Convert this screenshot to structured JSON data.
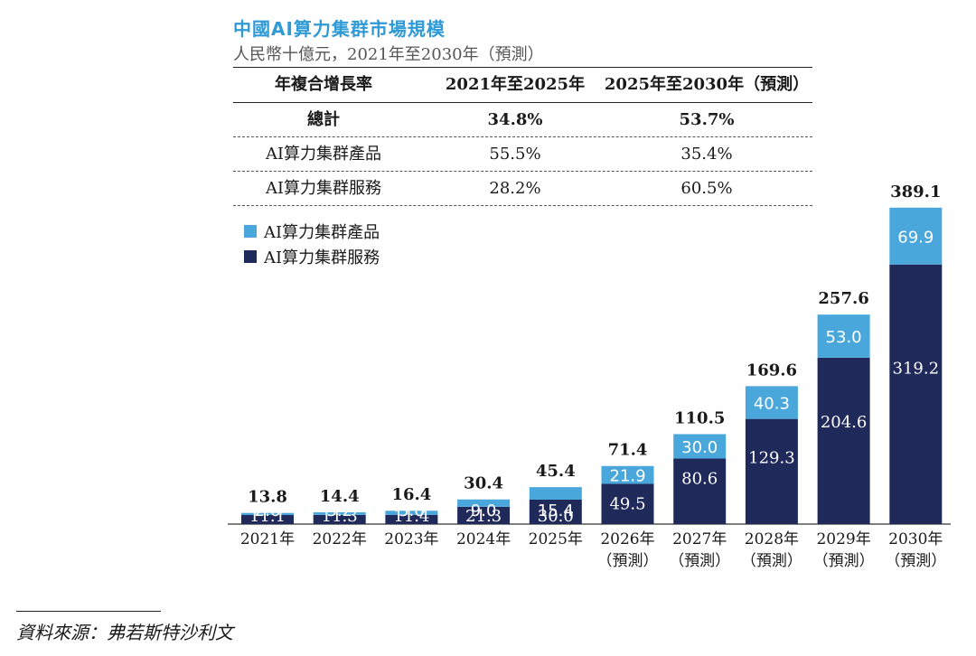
{
  "title": "中國AI算力集群市場規模",
  "subtitle": "人民幣十億元，2021年至2030年（預測）",
  "cagr_table": {
    "headers": [
      "年複合增長率",
      "2021年至2025年",
      "2025年至2030年（預測）"
    ],
    "rows": [
      {
        "label": "總計",
        "a": "34.8%",
        "b": "53.7%"
      },
      {
        "label": "AI算力集群產品",
        "a": "55.5%",
        "b": "35.4%"
      },
      {
        "label": "AI算力集群服務",
        "a": "28.2%",
        "b": "60.5%"
      }
    ]
  },
  "colors": {
    "services": "#1f2a5a",
    "products": "#4aa7dc"
  },
  "chart_data": {
    "type": "bar",
    "stacked": true,
    "categories": [
      "2021年",
      "2022年",
      "2023年",
      "2024年",
      "2025年",
      "2026年",
      "2027年",
      "2028年",
      "2029年",
      "2030年"
    ],
    "category_sub": [
      "",
      "",
      "",
      "",
      "",
      "（預測）",
      "（預測）",
      "（預測）",
      "（預測）",
      "（預測）"
    ],
    "series": [
      {
        "name": "AI算力集群服務",
        "values": [
          11.1,
          11.3,
          11.4,
          21.3,
          30.0,
          49.5,
          80.6,
          129.3,
          204.6,
          319.2
        ]
      },
      {
        "name": "AI算力集群產品",
        "values": [
          2.6,
          3.2,
          5.0,
          9.0,
          15.4,
          21.9,
          30.0,
          40.3,
          53.0,
          69.9
        ]
      }
    ],
    "totals": [
      "13.8",
      "14.4",
      "16.4",
      "30.4",
      "45.4",
      "71.4",
      "110.5",
      "169.6",
      "257.6",
      "389.1"
    ],
    "legend_order": [
      "AI算力集群產品",
      "AI算力集群服務"
    ]
  },
  "source": "資料來源：弗若斯特沙利文"
}
